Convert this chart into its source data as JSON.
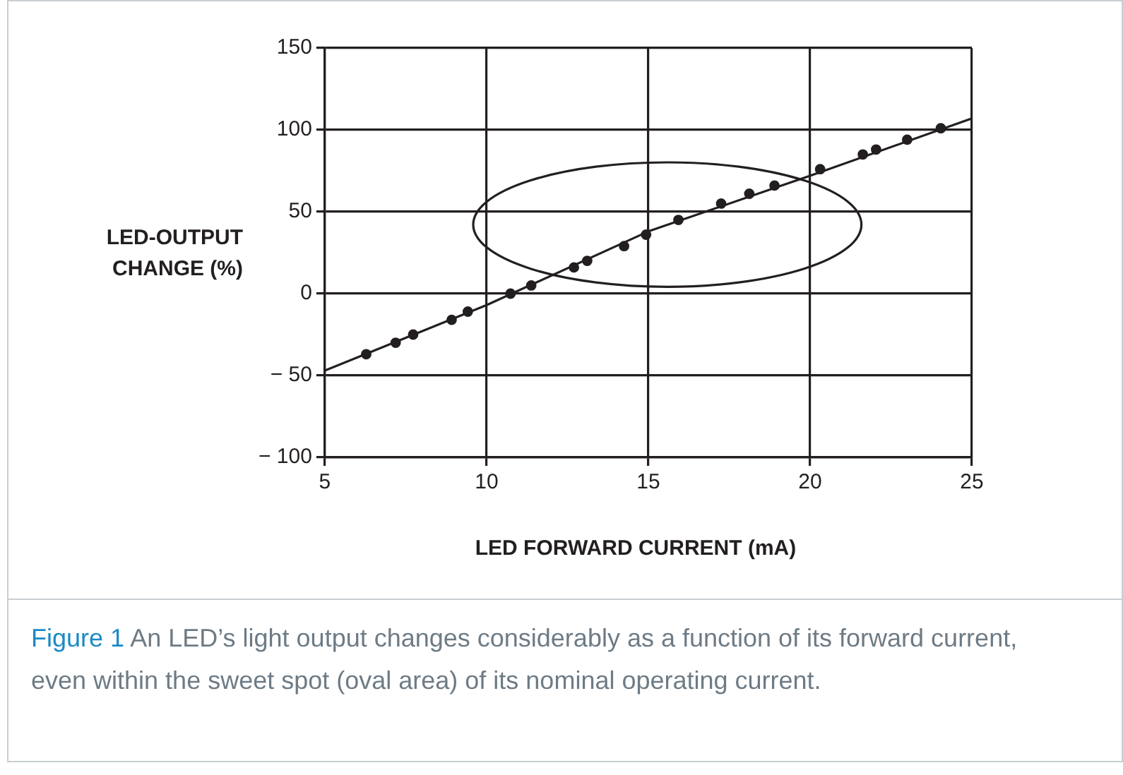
{
  "chart_data": {
    "type": "scatter",
    "xlabel": "LED FORWARD CURRENT (mA)",
    "ylabel": "LED-OUTPUT CHANGE (%)",
    "annotations": [
      "Figure 1",
      "An LED’s light output changes considerably as a function of its forward current, even within the sweet spot (oval area) of its nominal operating current."
    ],
    "series": [
      {
        "type": "line",
        "color": "#231f20",
        "marker": "none",
        "x": [
          5,
          10,
          15,
          20,
          25
        ],
        "values": [
          -47,
          -7,
          38,
          72,
          107
        ]
      },
      {
        "type": "scatter",
        "color": "#231f20",
        "marker": "circle",
        "x": [
          6.28,
          7.19,
          7.73,
          8.92,
          9.42,
          10.74,
          11.38,
          12.7,
          13.11,
          14.25,
          14.93,
          15.93,
          17.25,
          18.12,
          18.9,
          20.31,
          21.63,
          22.04,
          23.0,
          24.04
        ],
        "values": [
          -37,
          -30,
          -25,
          -16,
          -11,
          0,
          5,
          16,
          20,
          29,
          36,
          45,
          55,
          61,
          66,
          76,
          85,
          88,
          94,
          101
        ]
      }
    ],
    "xlim": [
      5,
      25
    ],
    "xticks": [
      5,
      10,
      15,
      20,
      25
    ],
    "ylim": [
      -100,
      150
    ],
    "yticks": [
      {
        "value": -100,
        "label": "− 100"
      },
      {
        "value": -50,
        "label": "− 50"
      },
      0,
      50,
      100,
      150
    ],
    "grid": true,
    "legend": false
  }
}
